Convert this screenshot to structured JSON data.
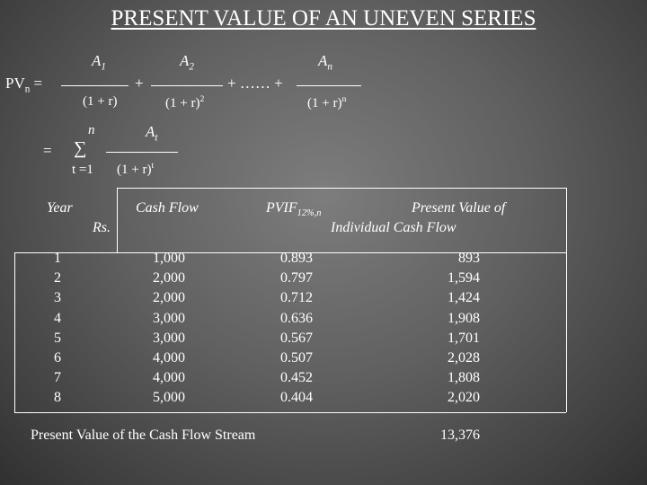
{
  "title": "PRESENT VALUE OF AN UNEVEN SERIES",
  "formula": {
    "pv_label": "PV",
    "pv_sub": "n",
    "equals": "=",
    "plus": "+",
    "ellipsis": "+ …… +",
    "terms": [
      {
        "num": "A",
        "num_sub": "1",
        "den": "(1 + r)",
        "den_sup": ""
      },
      {
        "num": "A",
        "num_sub": "2",
        "den": "(1 + r)",
        "den_sup": "2"
      },
      {
        "num": "A",
        "num_sub": "n",
        "den": "(1 + r)",
        "den_sup": "n"
      }
    ],
    "sum_equals": "=",
    "sum_symbol": "∑",
    "sum_upper": "n",
    "sum_lower": "t =1",
    "sum_num": "A",
    "sum_num_sub": "t",
    "sum_den": "(1 + r)",
    "sum_den_sup": "t"
  },
  "table": {
    "headers": {
      "year": "Year",
      "rs": "Rs.",
      "cash_flow": "Cash Flow",
      "pvif": "PVIF",
      "pvif_sub": "12%,n",
      "pv_line1": "Present Value of",
      "pv_line2": "Individual Cash Flow"
    },
    "years": [
      "1",
      "2",
      "3",
      "4",
      "5",
      "6",
      "7",
      "8"
    ],
    "cash_flows": [
      "1,000",
      "2,000",
      "2,000",
      "3,000",
      "3,000",
      "4,000",
      "4,000",
      "5,000"
    ],
    "pvif": [
      "0.893",
      "0.797",
      "0.712",
      "0.636",
      "0.567",
      "0.507",
      "0.452",
      "0.404"
    ],
    "present_values": [
      "893",
      "1,594",
      "1,424",
      "1,908",
      "1,701",
      "2,028",
      "1,808",
      "2,020"
    ],
    "footer_label": "Present Value of the Cash Flow Stream",
    "footer_total": "13,376"
  }
}
